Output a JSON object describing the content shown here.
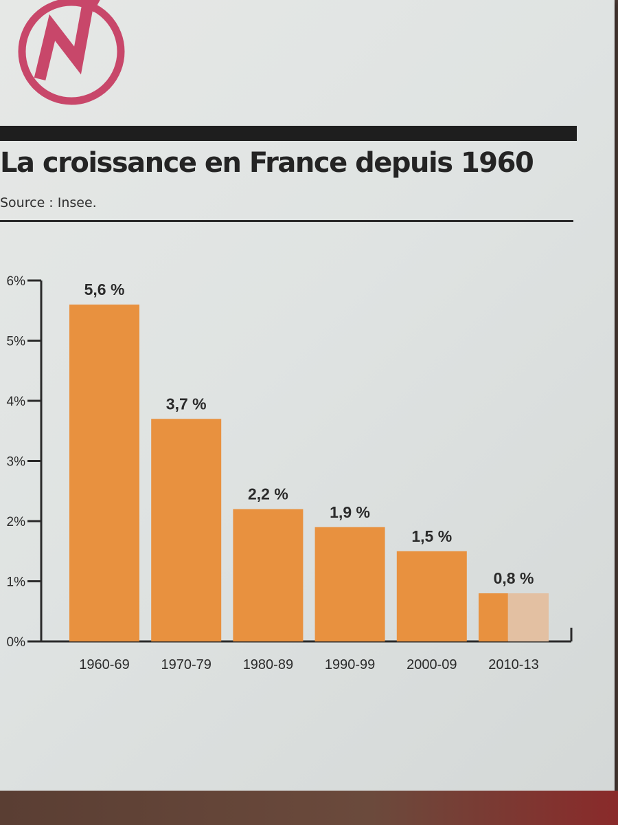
{
  "colors": {
    "bar": "#e8913f",
    "bar_partial": "#e3c0a2",
    "axis": "#2a2a2a",
    "logo": "#c8476a"
  },
  "logo": {
    "icon": "n-arrow-circle-logo",
    "letter": "N"
  },
  "chart_data": {
    "type": "bar",
    "title": "La croissance en France depuis 1960",
    "source": "Source : Insee.",
    "categories": [
      "1960-69",
      "1970-79",
      "1980-89",
      "1990-99",
      "2000-09",
      "2010-13"
    ],
    "values": [
      5.6,
      3.7,
      2.2,
      1.9,
      1.5,
      0.8
    ],
    "value_labels": [
      "5,6 %",
      "3,7 %",
      "2,2 %",
      "1,9 %",
      "1,5 %",
      "0,8 %"
    ],
    "y_ticks": [
      0,
      1,
      2,
      3,
      4,
      5,
      6
    ],
    "y_tick_labels": [
      "0%",
      "1%",
      "2%",
      "3%",
      "4%",
      "5%",
      "6%"
    ],
    "ylim": [
      0,
      6
    ],
    "xlabel": "",
    "ylabel": "",
    "grid": false
  }
}
